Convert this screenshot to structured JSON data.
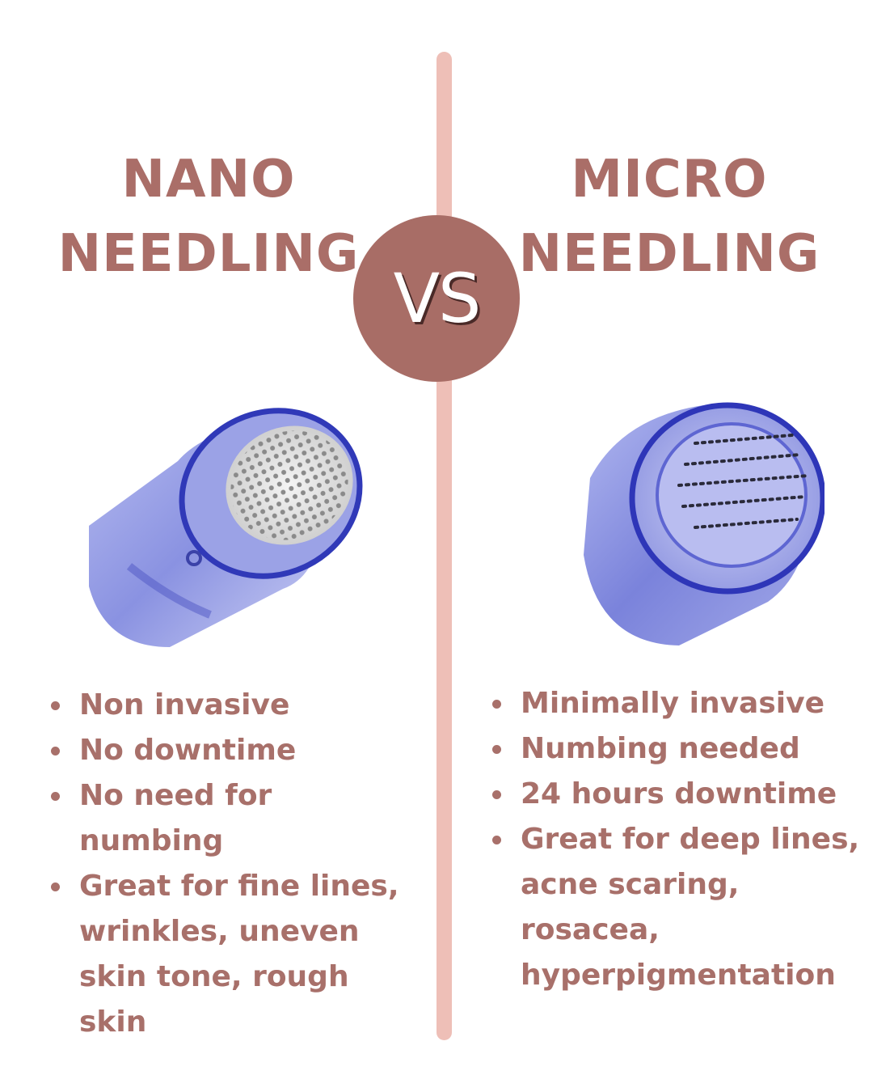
{
  "left": {
    "title_line1": "NANO",
    "title_line2": "NEEDLING",
    "features": [
      "Non invasive",
      "No downtime",
      "No need for numbing",
      "Great for fine lines, wrinkles, uneven skin tone, rough skin"
    ]
  },
  "right": {
    "title_line1": "MICRO",
    "title_line2": "NEEDLING",
    "features": [
      "Minimally invasive",
      "Numbing needed",
      "24 hours downtime",
      "Great for deep lines, acne scaring, rosacea, hyperpigmentation"
    ]
  },
  "badge": {
    "label": "VS"
  },
  "colors": {
    "title": "#aa6e68",
    "badge": "#a86d66",
    "divider": "#eebfb7",
    "cartridge": "#6a72d8"
  }
}
